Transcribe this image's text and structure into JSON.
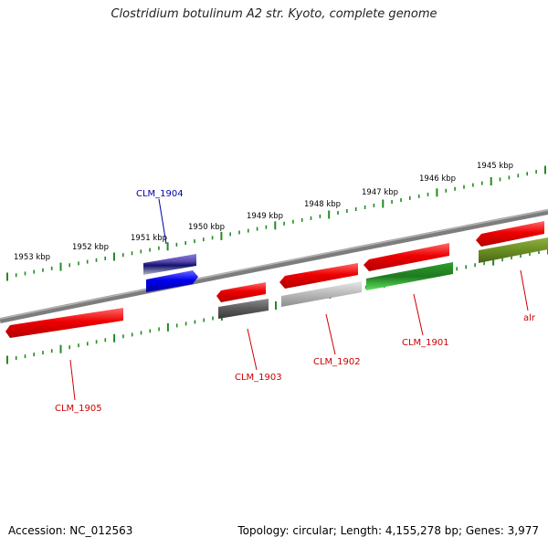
{
  "title": "Clostridium botulinum A2 str. Kyoto, complete genome",
  "footer": {
    "accession": "Accession: NC_012563",
    "summary": "Topology: circular; Length: 4,155,278 bp; Genes: 3,977"
  },
  "colors": {
    "backbone": "#7d7d7d",
    "tick": "#228b22",
    "label_red": "#cc0000",
    "label_blue": "#0000aa"
  },
  "scale_labels": [
    "1953 kbp",
    "1952 kbp",
    "1951 kbp",
    "1950 kbp",
    "1949 kbp",
    "1948 kbp",
    "1947 kbp",
    "1946 kbp",
    "1945 kbp"
  ],
  "genes": [
    {
      "id": "CLM_1905",
      "label": "CLM_1905",
      "color": "#e00000",
      "label_color": "#cc0000"
    },
    {
      "id": "CLM_1904",
      "label": "CLM_1904",
      "color": "#0000ee",
      "label_color": "#0000aa"
    },
    {
      "id": "CLM_1903",
      "label": "CLM_1903",
      "color": "#e00000",
      "label_color": "#cc0000"
    },
    {
      "id": "CLM_1902",
      "label": "CLM_1902",
      "color": "#e00000",
      "label_color": "#cc0000"
    },
    {
      "id": "CLM_1901",
      "label": "CLM_1901",
      "color": "#e00000",
      "label_color": "#cc0000"
    },
    {
      "id": "alr",
      "label": "alr",
      "color": "#e00000",
      "label_color": "#cc0000"
    }
  ],
  "analysis_tracks": [
    {
      "id": "CLM_1904",
      "colors": [
        "#6a5acd",
        "#1e1e8c",
        "#b4b4c8"
      ]
    },
    {
      "id": "CLM_1903",
      "colors": [
        "#555555"
      ]
    },
    {
      "id": "CLM_1902",
      "colors": [
        "#aaaaaa"
      ]
    },
    {
      "id": "CLM_1901",
      "colors": [
        "#1e8c1e",
        "#3cc83c"
      ]
    },
    {
      "id": "alr",
      "colors": [
        "#6b8e23"
      ]
    }
  ]
}
